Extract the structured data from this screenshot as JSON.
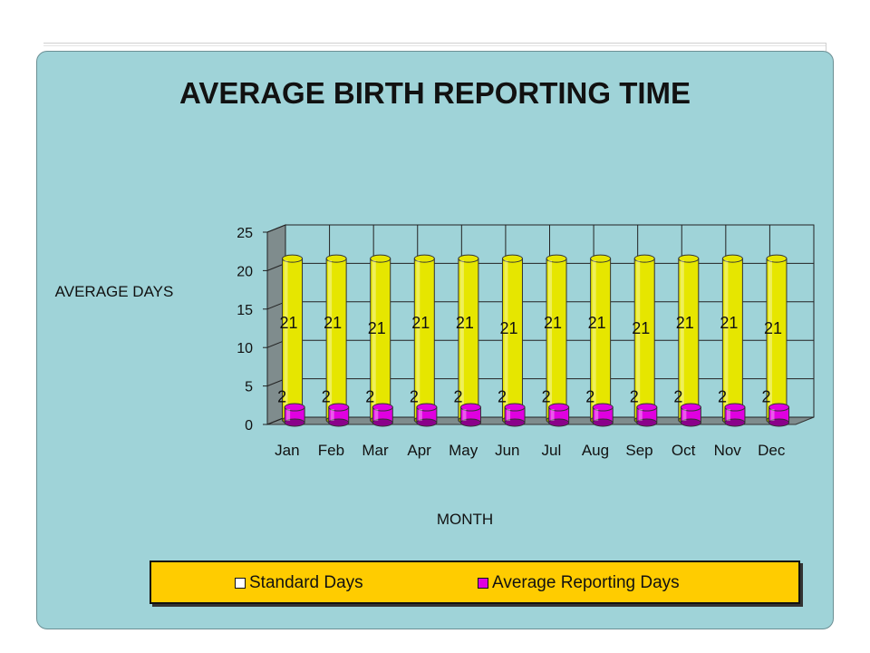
{
  "chart_data": {
    "type": "bar",
    "title": "AVERAGE BIRTH REPORTING TIME",
    "xlabel": "MONTH",
    "ylabel": "AVERAGE DAYS",
    "categories": [
      "Jan",
      "Feb",
      "Mar",
      "Apr",
      "May",
      "Jun",
      "Jul",
      "Aug",
      "Sep",
      "Oct",
      "Nov",
      "Dec"
    ],
    "ylim": [
      0,
      25
    ],
    "yticks": [
      "0",
      "5",
      "10",
      "15",
      "20",
      "25"
    ],
    "grid": true,
    "legend_position": "bottom",
    "series": [
      {
        "name": "Standard Days",
        "values": [
          21,
          21,
          21,
          21,
          21,
          21,
          21,
          21,
          21,
          21,
          21,
          21
        ],
        "color": "#e6e600"
      },
      {
        "name": "Average Reporting Days",
        "values": [
          2,
          2,
          2,
          2,
          2,
          2,
          2,
          2,
          2,
          2,
          2,
          2
        ],
        "color": "#e000e0"
      }
    ]
  }
}
